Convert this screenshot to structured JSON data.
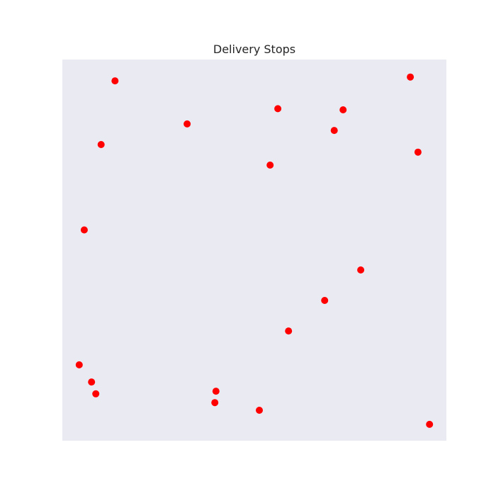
{
  "chart_data": {
    "type": "scatter",
    "title": "Delivery Stops",
    "xlabel": "",
    "ylabel": "",
    "axes_visible": false,
    "grid": false,
    "background_color": "#eaeaf2",
    "marker_color": "#ff0000",
    "xlim": [
      0,
      100
    ],
    "ylim": [
      0,
      100
    ],
    "points": [
      {
        "x": 13.7,
        "y": 94.4
      },
      {
        "x": 90.6,
        "y": 95.4
      },
      {
        "x": 32.5,
        "y": 83.1
      },
      {
        "x": 56.1,
        "y": 87.1
      },
      {
        "x": 73.1,
        "y": 86.8
      },
      {
        "x": 70.8,
        "y": 81.4
      },
      {
        "x": 10.1,
        "y": 77.7
      },
      {
        "x": 92.6,
        "y": 75.7
      },
      {
        "x": 54.1,
        "y": 72.3
      },
      {
        "x": 5.7,
        "y": 55.3
      },
      {
        "x": 77.7,
        "y": 44.8
      },
      {
        "x": 68.3,
        "y": 36.8
      },
      {
        "x": 58.9,
        "y": 28.8
      },
      {
        "x": 4.4,
        "y": 19.9
      },
      {
        "x": 7.6,
        "y": 15.4
      },
      {
        "x": 8.7,
        "y": 12.3
      },
      {
        "x": 40.0,
        "y": 13.0
      },
      {
        "x": 39.7,
        "y": 10.0
      },
      {
        "x": 51.3,
        "y": 8.0
      },
      {
        "x": 95.6,
        "y": 4.3
      }
    ]
  }
}
